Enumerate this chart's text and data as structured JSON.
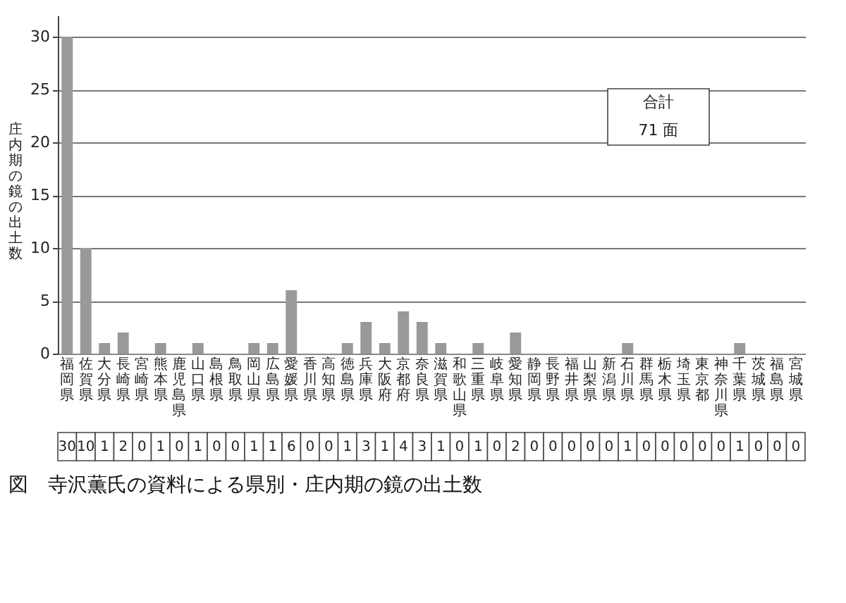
{
  "chart_data": {
    "type": "bar",
    "title": "図　寺沢薫氏の資料による県別・庄内期の鏡の出土数",
    "ylabel": "庄内期の鏡の出土数",
    "categories": [
      "福岡県",
      "佐賀県",
      "大分県",
      "長崎県",
      "宮崎県",
      "熊本県",
      "鹿児島県",
      "山口県",
      "島根県",
      "鳥取県",
      "岡山県",
      "広島県",
      "愛媛県",
      "香川県",
      "高知県",
      "徳島県",
      "兵庫県",
      "大阪府",
      "京都府",
      "奈良県",
      "滋賀県",
      "和歌山県",
      "三重県",
      "岐阜県",
      "愛知県",
      "静岡県",
      "長野県",
      "福井県",
      "山梨県",
      "新潟県",
      "石川県",
      "群馬県",
      "栃木県",
      "埼玉県",
      "東京都",
      "神奈川県",
      "千葉県",
      "茨城県",
      "福島県",
      "宮城県"
    ],
    "values": [
      30,
      10,
      1,
      2,
      0,
      1,
      0,
      1,
      0,
      0,
      1,
      1,
      6,
      0,
      0,
      1,
      3,
      1,
      4,
      3,
      1,
      0,
      1,
      0,
      2,
      0,
      0,
      0,
      0,
      0,
      1,
      0,
      0,
      0,
      0,
      0,
      1,
      0,
      0,
      0
    ],
    "color": "#999999",
    "ylim": [
      0,
      32
    ],
    "yticks": [
      0,
      5,
      10,
      15,
      20,
      25,
      30
    ],
    "grid": "y",
    "data_labels": true,
    "annotations": [
      "合計",
      "71 面"
    ]
  }
}
